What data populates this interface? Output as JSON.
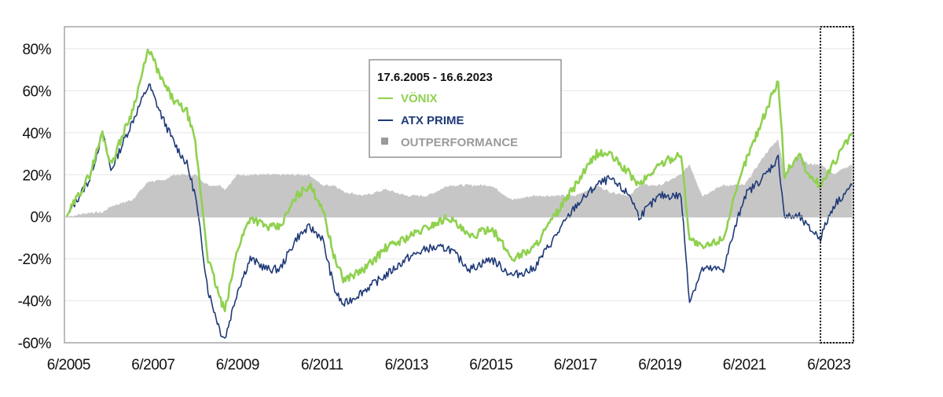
{
  "chart_data": {
    "type": "line",
    "title": "",
    "xlabel": "",
    "ylabel": "",
    "ylim": [
      -60,
      80
    ],
    "xlim": [
      2005.4,
      2024.08
    ],
    "y_ticks": [
      80,
      60,
      40,
      20,
      0,
      -20,
      -40,
      -60
    ],
    "y_tick_labels": [
      "80%",
      "60%",
      "40%",
      "20%",
      "0%",
      "-20%",
      "-40%",
      "-60%"
    ],
    "x_ticks": [
      2005.5,
      2007.5,
      2009.5,
      2011.5,
      2013.5,
      2015.5,
      2017.5,
      2019.5,
      2021.5,
      2023.5
    ],
    "x_tick_labels": [
      "6/2005",
      "6/2007",
      "6/2009",
      "6/2011",
      "6/2013",
      "6/2015",
      "6/2017",
      "6/2019",
      "6/2021",
      "6/2023"
    ],
    "grid": true,
    "legend": {
      "placement": "top-center",
      "title": "17.6.2005 - 16.6.2023",
      "entries": [
        "VÖNIX",
        "ATX PRIME",
        "OUTPERFORMANCE"
      ]
    },
    "highlight_box": {
      "x_range": [
        2023.3,
        2024.08
      ]
    },
    "x": [
      2005.45,
      2006.0,
      2006.3,
      2006.5,
      2007.0,
      2007.4,
      2007.7,
      2008.0,
      2008.3,
      2008.5,
      2008.8,
      2009.1,
      2009.2,
      2009.5,
      2009.8,
      2010.2,
      2010.5,
      2010.9,
      2011.2,
      2011.5,
      2011.8,
      2012.0,
      2012.5,
      2013.0,
      2013.5,
      2014.0,
      2014.5,
      2015.0,
      2015.5,
      2016.0,
      2016.5,
      2017.0,
      2017.5,
      2018.0,
      2018.3,
      2018.8,
      2019.0,
      2019.5,
      2020.0,
      2020.2,
      2020.5,
      2021.0,
      2021.5,
      2022.0,
      2022.3,
      2022.45,
      2022.8,
      2023.0,
      2023.3,
      2023.6,
      2024.05
    ],
    "series": [
      {
        "name": "VÖNIX",
        "color": "#8fd14f",
        "values": [
          0,
          20,
          40,
          25,
          50,
          80,
          65,
          55,
          50,
          35,
          -20,
          -40,
          -45,
          -15,
          0,
          -5,
          -5,
          10,
          15,
          5,
          -20,
          -30,
          -25,
          -15,
          -10,
          -5,
          0,
          -10,
          -5,
          -20,
          -15,
          0,
          15,
          30,
          30,
          20,
          15,
          25,
          30,
          -10,
          -15,
          -10,
          25,
          50,
          65,
          20,
          30,
          20,
          15,
          25,
          40
        ]
      },
      {
        "name": "ATX PRIME",
        "color": "#1f3a78",
        "values": [
          0,
          18,
          40,
          22,
          45,
          63,
          48,
          35,
          25,
          10,
          -35,
          -55,
          -58,
          -35,
          -20,
          -25,
          -25,
          -10,
          -5,
          -10,
          -35,
          -42,
          -35,
          -28,
          -20,
          -15,
          -15,
          -25,
          -20,
          -28,
          -25,
          -10,
          5,
          15,
          18,
          10,
          0,
          10,
          10,
          -40,
          -25,
          -25,
          10,
          20,
          28,
          0,
          0,
          -5,
          -10,
          5,
          15
        ]
      },
      {
        "name": "OUTPERFORMANCE",
        "color": "#c6c6c6",
        "type": "area",
        "values": [
          0,
          2,
          2,
          5,
          8,
          17,
          17,
          20,
          20,
          20,
          15,
          15,
          13,
          20,
          20,
          20,
          20,
          20,
          20,
          15,
          15,
          12,
          10,
          13,
          10,
          10,
          15,
          15,
          15,
          8,
          10,
          10,
          10,
          15,
          12,
          10,
          15,
          15,
          20,
          25,
          10,
          15,
          15,
          30,
          37,
          20,
          30,
          25,
          25,
          20,
          25
        ]
      }
    ]
  }
}
